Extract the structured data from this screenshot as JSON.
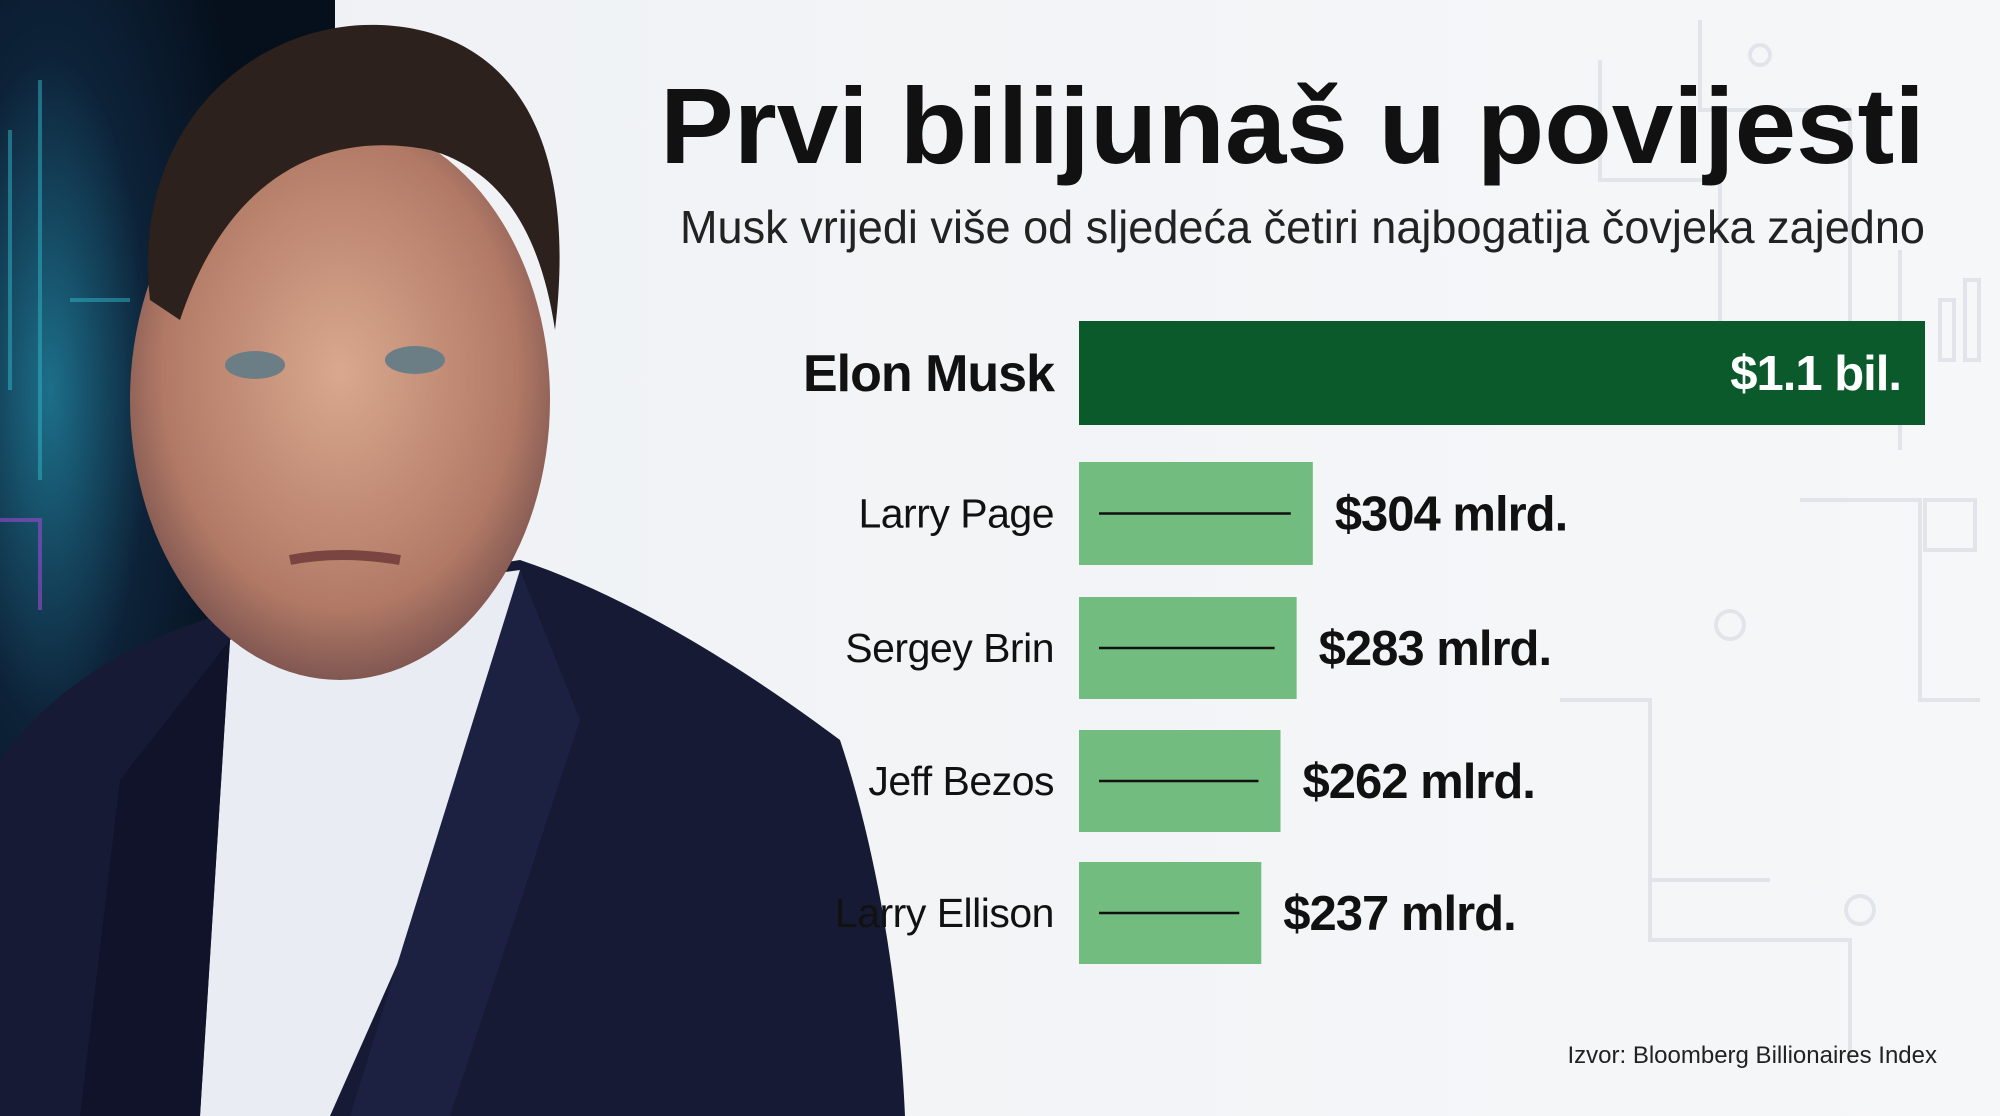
{
  "chart_data": {
    "type": "bar",
    "horizontal": true,
    "title": "Prvi bilijunaš u povijesti",
    "subtitle": "Musk vrijedi više od sljedeća četiri najbogatija čovjeka zajedno",
    "categories": [
      "Elon Musk",
      "Larry Page",
      "Sergey Brin",
      "Jeff Bezos",
      "Larry Ellison"
    ],
    "values": [
      1100,
      304,
      283,
      262,
      237
    ],
    "value_labels": [
      "$1.1 bil.",
      "$304 mlrd.",
      "$283 mlrd.",
      "$262 mlrd.",
      "$237 mlrd."
    ],
    "colors": [
      "#0b5a2c",
      "#73bc7f",
      "#73bc7f",
      "#73bc7f",
      "#73bc7f"
    ],
    "xlim": [
      0,
      1100
    ],
    "source": "Izvor: Bloomberg Billionaires Index"
  }
}
